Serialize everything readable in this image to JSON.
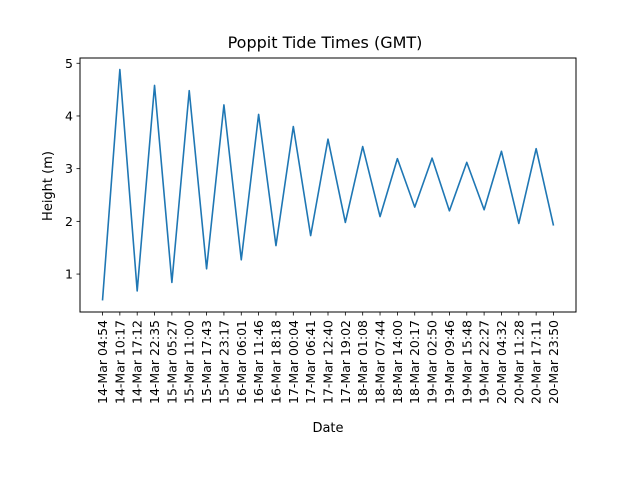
{
  "chart_data": {
    "type": "line",
    "title": "Poppit Tide Times (GMT)",
    "xlabel": "Date",
    "ylabel": "Height (m)",
    "categories": [
      "14-Mar 04:54",
      "14-Mar 10:17",
      "14-Mar 17:12",
      "14-Mar 22:35",
      "15-Mar 05:27",
      "15-Mar 11:00",
      "15-Mar 17:43",
      "15-Mar 23:17",
      "16-Mar 06:01",
      "16-Mar 11:46",
      "16-Mar 18:18",
      "17-Mar 00:04",
      "17-Mar 06:41",
      "17-Mar 12:40",
      "17-Mar 19:02",
      "18-Mar 01:08",
      "18-Mar 07:44",
      "18-Mar 14:00",
      "18-Mar 20:17",
      "19-Mar 02:50",
      "19-Mar 09:46",
      "19-Mar 15:48",
      "19-Mar 22:27",
      "20-Mar 04:32",
      "20-Mar 11:28",
      "20-Mar 17:11",
      "20-Mar 23:50"
    ],
    "series": [
      {
        "values": [
          0.5,
          4.88,
          0.68,
          4.58,
          0.84,
          4.48,
          1.1,
          4.21,
          1.27,
          4.03,
          1.54,
          3.8,
          1.73,
          3.56,
          1.98,
          3.42,
          2.09,
          3.19,
          2.27,
          3.2,
          2.2,
          3.12,
          2.22,
          3.33,
          1.96,
          3.38,
          1.92
        ],
        "color": "#1f77b4"
      }
    ],
    "ylim": [
      0.28,
      5.1
    ],
    "yticks": [
      1,
      2,
      3,
      4,
      5
    ],
    "grid": false,
    "legend": "none"
  }
}
